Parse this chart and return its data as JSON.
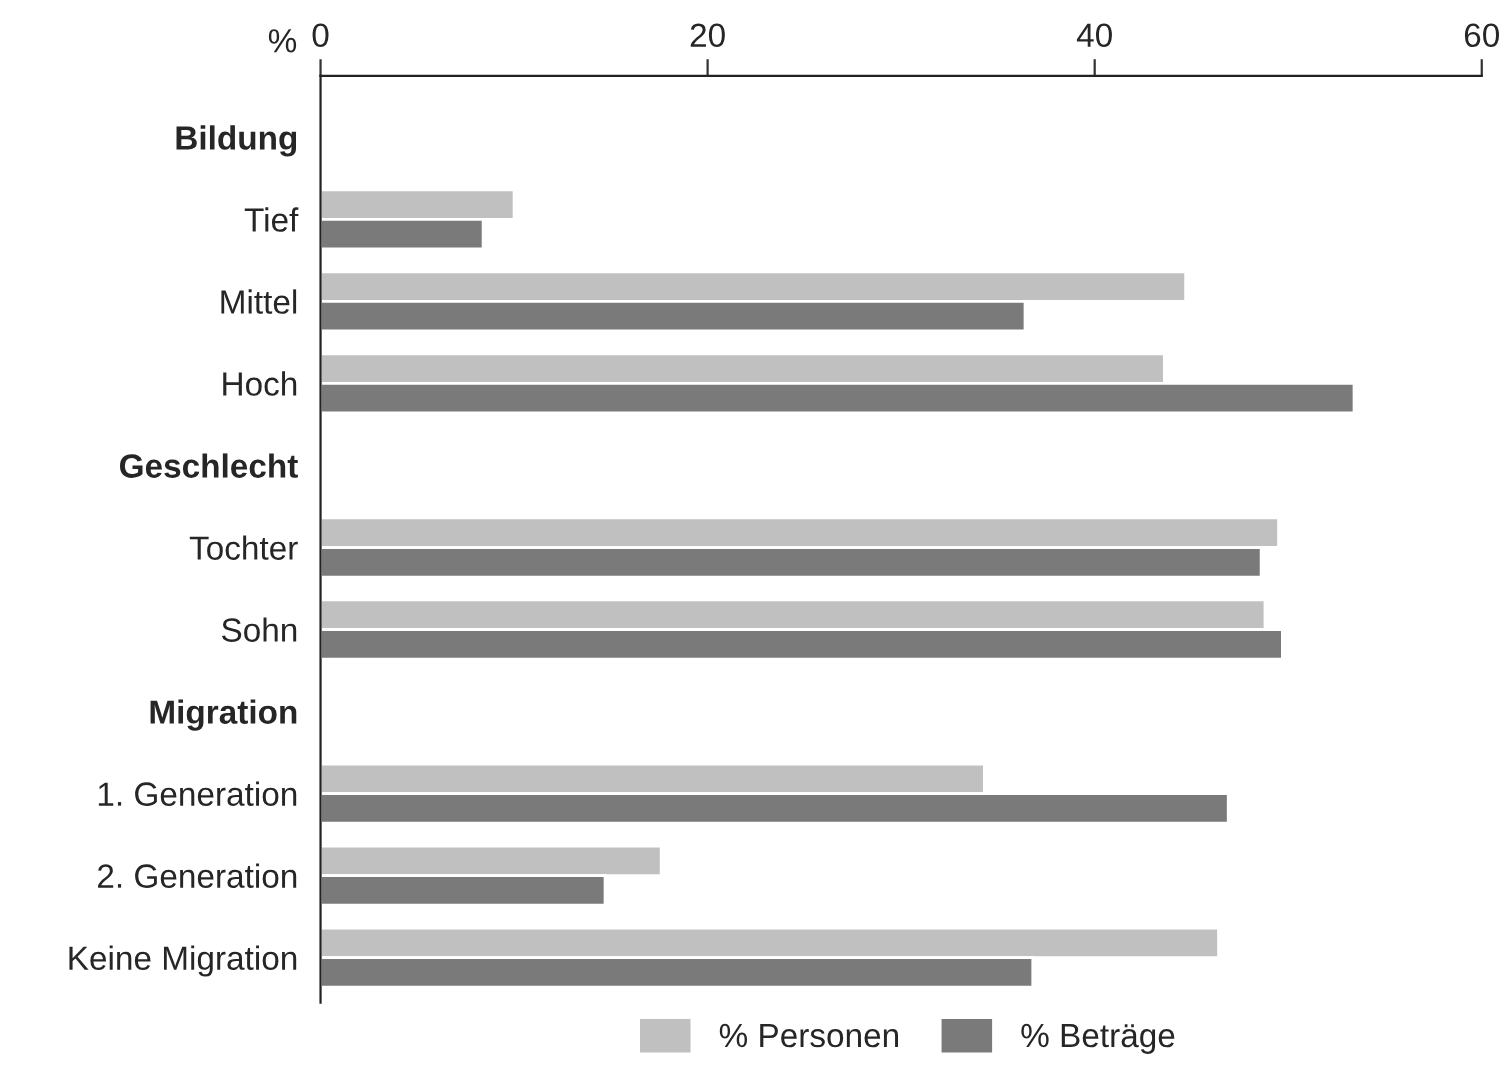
{
  "chart_data": {
    "type": "bar",
    "orientation": "horizontal",
    "xlabel": "%",
    "categories": [
      "Bildung",
      "Tief",
      "Mittel",
      "Hoch",
      "Geschlecht",
      "Tochter",
      "Sohn",
      "Migration",
      "1. Generation",
      "2. Generation",
      "Keine Migration"
    ],
    "series": [
      {
        "name": "% Personen",
        "color": "#c0c0c0",
        "values": [
          null,
          10.0,
          44.7,
          43.6,
          null,
          49.5,
          48.8,
          null,
          34.3,
          17.6,
          46.4
        ]
      },
      {
        "name": "% Beträge",
        "color": "#7a7a7a",
        "values": [
          null,
          8.4,
          36.4,
          53.4,
          null,
          48.6,
          49.7,
          null,
          46.9,
          14.7,
          36.8
        ]
      }
    ],
    "xlim": [
      0,
      60
    ],
    "xticks": [
      0,
      20,
      40,
      60
    ],
    "grid": false,
    "legend": "bottom"
  }
}
